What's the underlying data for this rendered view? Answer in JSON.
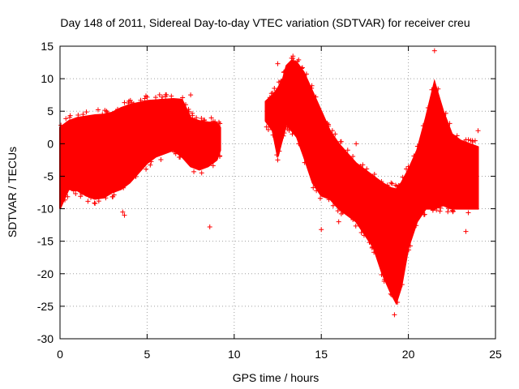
{
  "chart_data": {
    "type": "scatter",
    "title": "Day 148 of 2011, Sidereal Day-to-day VTEC variation (SDTVAR) for receiver creu",
    "xlabel": "GPS time / hours",
    "ylabel": "SDTVAR / TECUs",
    "xlim": [
      0,
      25
    ],
    "ylim": [
      -30,
      15
    ],
    "x_ticks": [
      0,
      5,
      10,
      15,
      20,
      25
    ],
    "y_ticks": [
      15,
      10,
      5,
      0,
      -5,
      -10,
      -15,
      -20,
      -25,
      -30
    ],
    "grid": true,
    "legend": "none",
    "marker": "+",
    "series": [
      {
        "name": "SDTVAR",
        "color": "#ff0000",
        "envelope_x": [
          0.0,
          0.5,
          1.0,
          1.5,
          2.0,
          2.5,
          3.0,
          3.5,
          4.0,
          4.5,
          5.0,
          5.5,
          6.0,
          6.5,
          7.0,
          7.5,
          8.0,
          8.5,
          9.0,
          9.2
        ],
        "envelope_upper": [
          2.5,
          3.5,
          4.0,
          4.2,
          4.4,
          4.5,
          4.8,
          5.5,
          6.0,
          6.3,
          6.6,
          6.7,
          6.8,
          6.9,
          6.8,
          4.0,
          3.5,
          3.3,
          3.2,
          2.5
        ],
        "envelope_lower": [
          -10.0,
          -7.0,
          -7.2,
          -8.0,
          -8.5,
          -8.3,
          -7.5,
          -7.0,
          -6.0,
          -4.5,
          -3.0,
          -2.0,
          -1.5,
          -1.0,
          -2.0,
          -3.5,
          -4.0,
          -3.5,
          -2.5,
          -1.0
        ],
        "envelope2_x": [
          11.8,
          12.2,
          12.5,
          12.8,
          13.0,
          13.3,
          13.6,
          14.0,
          14.5,
          15.0,
          15.5,
          16.0,
          16.5,
          17.0,
          17.5,
          18.0,
          18.5,
          19.0,
          19.3,
          19.6,
          20.0,
          20.5,
          21.0,
          21.5,
          22.0,
          22.5,
          23.0,
          23.5,
          24.0
        ],
        "envelope2_upper": [
          6.5,
          7.5,
          8.5,
          10.0,
          12.0,
          12.8,
          12.5,
          11.0,
          8.0,
          5.0,
          2.0,
          0.0,
          -1.5,
          -3.0,
          -4.0,
          -5.0,
          -6.0,
          -6.8,
          -7.0,
          -6.0,
          -4.0,
          -1.0,
          4.0,
          9.5,
          5.0,
          1.5,
          0.5,
          0.0,
          -0.5
        ],
        "envelope2_lower": [
          3.5,
          2.0,
          -2.0,
          1.0,
          3.0,
          2.0,
          1.0,
          -2.0,
          -6.0,
          -8.0,
          -8.5,
          -10.0,
          -11.0,
          -12.0,
          -14.0,
          -16.0,
          -20.0,
          -23.0,
          -24.5,
          -22.0,
          -16.0,
          -12.0,
          -10.0,
          -10.0,
          -9.5,
          -10.0,
          -10.0,
          -10.0,
          -10.0
        ],
        "outliers": [
          {
            "x": 8.6,
            "y": -12.8
          },
          {
            "x": 7.5,
            "y": 7.5
          },
          {
            "x": 12.5,
            "y": 12.3
          },
          {
            "x": 12.5,
            "y": -2.5
          },
          {
            "x": 13.7,
            "y": 0.0
          },
          {
            "x": 15.0,
            "y": -13.2
          },
          {
            "x": 16.0,
            "y": -12.0
          },
          {
            "x": 17.0,
            "y": -9.3
          },
          {
            "x": 17.0,
            "y": 0.0
          },
          {
            "x": 3.7,
            "y": -11.0
          },
          {
            "x": 3.6,
            "y": -10.5
          },
          {
            "x": 19.2,
            "y": -26.3
          },
          {
            "x": 21.5,
            "y": 14.3
          },
          {
            "x": 23.3,
            "y": -13.5
          },
          {
            "x": 24.0,
            "y": 2.0
          }
        ]
      }
    ]
  }
}
